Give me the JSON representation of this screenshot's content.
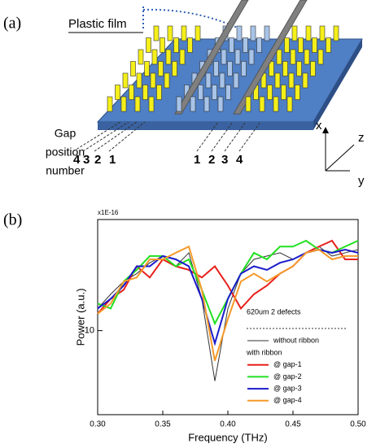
{
  "diagram": {
    "panel_a_label": "(a)",
    "panel_b_label": "(b)",
    "film_label": "Plastic film",
    "gap_label": [
      "Gap",
      "position",
      "number"
    ],
    "left_gap_numbers": [
      "4",
      "3",
      "2",
      "1"
    ],
    "right_gap_numbers": [
      "1",
      "2",
      "3",
      "4"
    ],
    "axis_labels": {
      "x": "x",
      "y": "y",
      "z": "z"
    }
  },
  "chart_data": {
    "type": "line",
    "x_label": "Frequency (THz)",
    "y_label": "Power (a.u.)",
    "y_multiplier_label": "x1E-16",
    "legend_title": "620um 2 defects",
    "legend_subtitle": "with ribbon",
    "log_y": true,
    "x": [
      0.3,
      0.31,
      0.32,
      0.33,
      0.34,
      0.35,
      0.36,
      0.37,
      0.38,
      0.39,
      0.4,
      0.41,
      0.42,
      0.43,
      0.44,
      0.45,
      0.46,
      0.47,
      0.48,
      0.49,
      0.5
    ],
    "xlim": [
      0.3,
      0.5
    ],
    "xticks": [
      {
        "value": 0.3,
        "label": "0.30"
      },
      0.35,
      {
        "value": 0.4,
        "label": "0.40"
      },
      0.45,
      {
        "value": 0.5,
        "label": "0.50"
      }
    ],
    "ylim": [
      5,
      25
    ],
    "yticks": [
      10
    ],
    "series": [
      {
        "name": "without ribbon",
        "color": "#333333",
        "values": [
          12,
          13.5,
          15,
          16,
          17.5,
          18.5,
          17,
          19,
          13,
          6.6,
          12,
          16,
          18,
          18.5,
          19,
          18,
          19,
          20,
          18.5,
          19,
          19.5
        ]
      },
      {
        "name": "@ gap-1",
        "color": "#e8201c",
        "values": [
          11.5,
          13,
          14,
          17,
          15.5,
          18,
          17,
          16.5,
          15.5,
          17,
          14.5,
          12,
          13.5,
          14.5,
          16,
          17,
          19,
          20,
          21,
          18,
          18
        ]
      },
      {
        "name": "@ gap-2",
        "color": "#22e022",
        "values": [
          12.5,
          12,
          15,
          16.5,
          18.5,
          18.5,
          17,
          18,
          14,
          10.6,
          13,
          16,
          19,
          18,
          20,
          20,
          21,
          19.5,
          19,
          20,
          21
        ]
      },
      {
        "name": "@ gap-3",
        "color": "#1a1acc",
        "values": [
          12,
          13,
          14.5,
          17,
          17,
          18.5,
          18,
          17,
          13,
          9,
          13,
          16,
          17,
          16.5,
          17.5,
          18,
          19,
          19.5,
          19,
          19.5,
          19
        ]
      },
      {
        "name": "@ gap-4",
        "color": "#f59a2a",
        "values": [
          11.5,
          12.5,
          15,
          15.5,
          18,
          18,
          19,
          20,
          14,
          7.8,
          11,
          15,
          16,
          15,
          16,
          17,
          19,
          19.5,
          18,
          18.5,
          18.5
        ]
      }
    ]
  }
}
